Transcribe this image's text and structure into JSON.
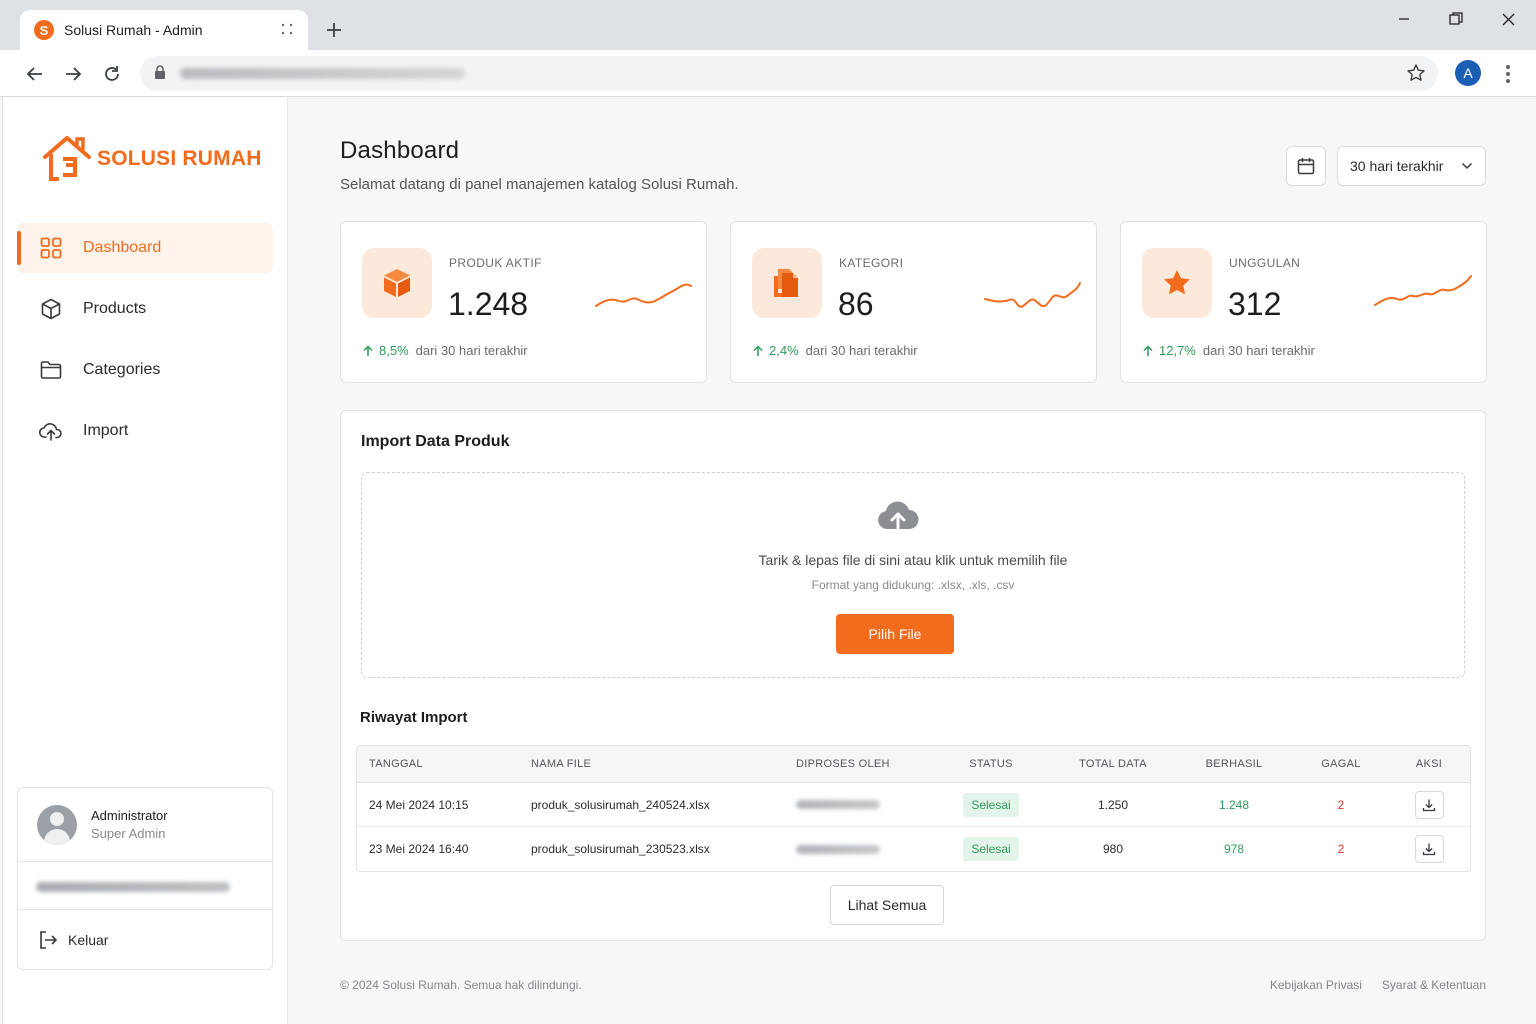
{
  "browser": {
    "tab_title": "Solusi Rumah - Admin",
    "favicon_letter": "S",
    "profile_initial": "A"
  },
  "sidebar": {
    "brand": "SOLUSI RUMAH",
    "items": [
      {
        "label": "Dashboard",
        "icon": "grid-icon",
        "active": true
      },
      {
        "label": "Products",
        "icon": "box-icon",
        "active": false
      },
      {
        "label": "Categories",
        "icon": "folder-icon",
        "active": false
      },
      {
        "label": "Import",
        "icon": "cloud-upload-icon",
        "active": false
      }
    ],
    "user": {
      "name": "Administrator",
      "role": "Super Admin",
      "logout_label": "Keluar"
    }
  },
  "header": {
    "title": "Dashboard",
    "subtitle": "Selamat datang di panel manajemen katalog Solusi Rumah.",
    "range_selected": "30 hari terakhir"
  },
  "stats": [
    {
      "label": "PRODUK AKTIF",
      "value": "1.248",
      "change": "8,5%",
      "period": "dari 30 hari terakhir",
      "icon": "cube-icon"
    },
    {
      "label": "KATEGORI",
      "value": "86",
      "change": "2,4%",
      "period": "dari 30 hari terakhir",
      "icon": "documents-icon"
    },
    {
      "label": "UNGGULAN",
      "value": "312",
      "change": "12,7%",
      "period": "dari 30 hari terakhir",
      "icon": "star-icon"
    }
  ],
  "import": {
    "title": "Import Data Produk",
    "drop_text": "Tarik & lepas file di sini atau klik untuk memilih file",
    "formats_text": "Format yang didukung: .xlsx, .xls, .csv",
    "button_label": "Pilih File"
  },
  "history": {
    "title": "Riwayat Import",
    "columns": [
      "TANGGAL",
      "NAMA FILE",
      "DIPROSES OLEH",
      "STATUS",
      "TOTAL DATA",
      "BERHASIL",
      "GAGAL",
      "AKSI"
    ],
    "rows": [
      {
        "date": "24 Mei 2024 10:15",
        "file": "produk_solusirumah_240524.xlsx",
        "status": "Selesai",
        "total": "1.250",
        "success": "1.248",
        "failed": "2"
      },
      {
        "date": "23 Mei 2024 16:40",
        "file": "produk_solusirumah_230523.xlsx",
        "status": "Selesai",
        "total": "980",
        "success": "978",
        "failed": "2"
      }
    ],
    "see_all_label": "Lihat Semua"
  },
  "footer": {
    "copyright": "© 2024 Solusi Rumah. Semua hak dilindungi.",
    "privacy": "Kebijakan Privasi",
    "terms": "Syarat & Ketentuan"
  },
  "colors": {
    "accent": "#f36b1c",
    "accent_soft": "#fde9dc",
    "success": "#2e9b5b",
    "danger": "#d63b2f"
  }
}
